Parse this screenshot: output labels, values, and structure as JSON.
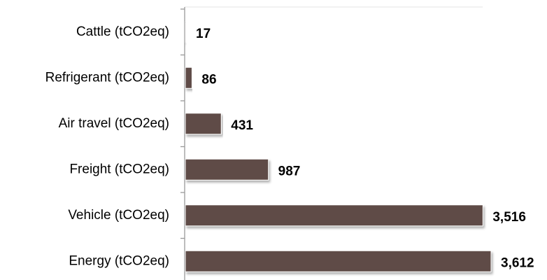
{
  "chart_data": {
    "type": "bar",
    "orientation": "horizontal",
    "categories": [
      "Cattle (tCO2eq)",
      "Refrigerant (tCO2eq)",
      "Air travel (tCO2eq)",
      "Freight (tCO2eq)",
      "Vehicle (tCO2eq)",
      "Energy (tCO2eq)"
    ],
    "values": [
      17,
      86,
      431,
      987,
      3516,
      3612
    ],
    "value_labels": [
      "17",
      "86",
      "431",
      "987",
      "3,516",
      "3,612"
    ],
    "color": "#5e4c46"
  }
}
